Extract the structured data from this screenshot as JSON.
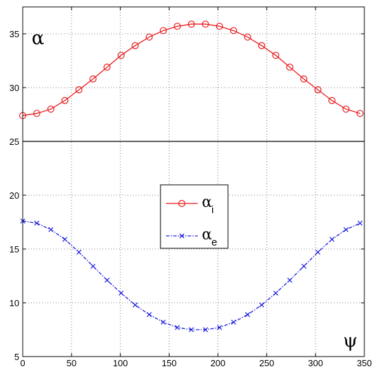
{
  "chart_data": {
    "type": "line",
    "title": "",
    "xlabel": "ψ",
    "ylabel": "α",
    "xlim": [
      0,
      350
    ],
    "ylim": [
      5,
      37.5
    ],
    "grid": true,
    "legend_position": "center",
    "xticks": [
      0,
      50,
      100,
      150,
      200,
      250,
      300,
      350
    ],
    "yticks": [
      5,
      10,
      15,
      20,
      25,
      30,
      35
    ],
    "reference_line": {
      "y": 25
    },
    "x": [
      0,
      14.4,
      28.8,
      43.2,
      57.6,
      72,
      86.4,
      100.8,
      115.2,
      129.6,
      144,
      158.4,
      172.8,
      187.2,
      201.6,
      216,
      230.4,
      244.8,
      259.2,
      273.6,
      288,
      302.4,
      316.8,
      331.2,
      345.6
    ],
    "series": [
      {
        "name": "α",
        "subscript": "i",
        "color": "#e8191b",
        "marker": "circle",
        "line_style": "solid",
        "values": [
          27.4,
          27.6,
          28.0,
          28.8,
          29.8,
          30.8,
          31.9,
          33.0,
          33.9,
          34.7,
          35.3,
          35.7,
          35.9,
          35.9,
          35.7,
          35.3,
          34.7,
          33.9,
          33.0,
          31.9,
          30.8,
          29.8,
          28.8,
          28.0,
          27.6
        ]
      },
      {
        "name": "α",
        "subscript": "e",
        "color": "#1a1ae0",
        "marker": "x",
        "line_style": "dashdot",
        "values": [
          17.6,
          17.4,
          16.8,
          15.9,
          14.7,
          13.4,
          12.1,
          10.9,
          9.8,
          8.9,
          8.2,
          7.7,
          7.5,
          7.5,
          7.7,
          8.2,
          8.9,
          9.8,
          10.9,
          12.1,
          13.4,
          14.7,
          15.9,
          16.8,
          17.4
        ]
      }
    ]
  }
}
